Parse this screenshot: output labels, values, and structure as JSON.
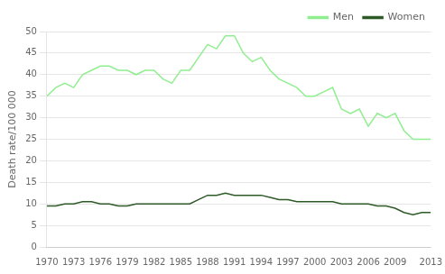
{
  "chart_data": {
    "type": "line",
    "x": [
      1970,
      1971,
      1972,
      1973,
      1974,
      1975,
      1976,
      1977,
      1978,
      1979,
      1980,
      1981,
      1982,
      1983,
      1984,
      1985,
      1986,
      1987,
      1988,
      1989,
      1990,
      1991,
      1992,
      1993,
      1994,
      1995,
      1996,
      1997,
      1998,
      1999,
      2000,
      2001,
      2002,
      2003,
      2004,
      2005,
      2006,
      2007,
      2008,
      2009,
      2010,
      2011,
      2012,
      2013
    ],
    "series": [
      {
        "name": "Men",
        "color": "#90EE90",
        "values": [
          35,
          37,
          38,
          37,
          40,
          41,
          42,
          42,
          41,
          41,
          40,
          41,
          41,
          39,
          38,
          41,
          41,
          44,
          47,
          46,
          49,
          49,
          45,
          43,
          44,
          41,
          39,
          38,
          37,
          35,
          35,
          36,
          37,
          32,
          31,
          32,
          28,
          31,
          30,
          31,
          27,
          25,
          25,
          25
        ]
      },
      {
        "name": "Women",
        "color": "#2d5a27",
        "values": [
          9.5,
          9.5,
          10,
          10,
          10.5,
          10.5,
          10,
          10,
          9.5,
          9.5,
          10,
          10,
          10,
          10,
          10,
          10,
          10,
          11,
          12,
          12,
          12.5,
          12,
          12,
          12,
          12,
          11.5,
          11,
          11,
          10.5,
          10.5,
          10.5,
          10.5,
          10.5,
          10,
          10,
          10,
          10,
          9.5,
          9.5,
          9,
          8,
          7.5,
          8,
          8
        ]
      }
    ],
    "ylabel": "Death rate/100 000",
    "xlim": [
      1970,
      2013
    ],
    "xticks": [
      1970,
      1973,
      1976,
      1979,
      1982,
      1985,
      1988,
      1991,
      1994,
      1997,
      2000,
      2003,
      2006,
      2009,
      2013
    ],
    "ylim": [
      0,
      50
    ],
    "yticks": [
      0,
      5,
      10,
      15,
      20,
      25,
      30,
      35,
      40,
      45,
      50
    ],
    "grid": "y",
    "legend": "upper right"
  }
}
